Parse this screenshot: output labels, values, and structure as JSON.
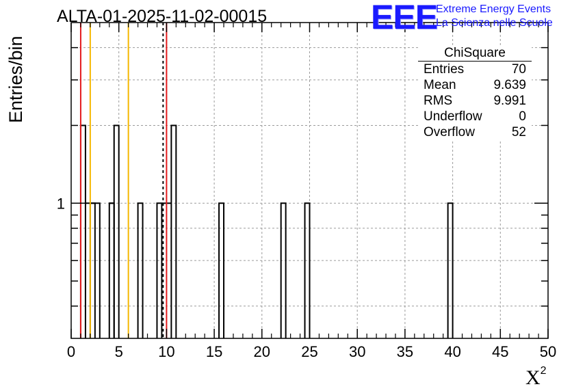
{
  "title": "ALTA-01-2025-11-02-00015",
  "logo": {
    "mark": "EEE",
    "line1": "Extreme Energy Events",
    "line2": "La Scienza nelle Scuole",
    "color": "#1a1aff"
  },
  "stats": {
    "name": "ChiSquare",
    "rows": [
      {
        "label": "Entries",
        "value": "70"
      },
      {
        "label": "Mean",
        "value": "9.639"
      },
      {
        "label": "RMS",
        "value": "9.991"
      },
      {
        "label": "Underflow",
        "value": "0"
      },
      {
        "label": "Overflow",
        "value": "52"
      }
    ]
  },
  "chart_data": {
    "type": "bar",
    "xlabel_base": "X",
    "xlabel_sup": "2",
    "ylabel": "Entries/bin",
    "xlim": [
      0,
      50
    ],
    "ylim": [
      0.3,
      5
    ],
    "log_y": true,
    "grid": true,
    "bin_width": 1,
    "bin_edges_note": "bins start at 0.0, width 1.0",
    "bins": [
      {
        "x": 1,
        "value": 2
      },
      {
        "x": 2,
        "value": 1
      },
      {
        "x": 4,
        "value": 1
      },
      {
        "x": 4.5,
        "value": 2
      },
      {
        "x": 7,
        "value": 1
      },
      {
        "x": 9,
        "value": 1
      },
      {
        "x": 10.5,
        "value": 2
      },
      {
        "x": 15.5,
        "value": 1
      },
      {
        "x": 22,
        "value": 1
      },
      {
        "x": 24.5,
        "value": 1
      },
      {
        "x": 39.5,
        "value": 1
      }
    ],
    "x_ticks": [
      0,
      5,
      10,
      15,
      20,
      25,
      30,
      35,
      40,
      45,
      50
    ],
    "y_tick_labels": [
      {
        "y": 1,
        "label": "1"
      }
    ],
    "reference_lines": [
      {
        "x": 1.0,
        "color": "#e31a1c",
        "style": "solid"
      },
      {
        "x": 2.0,
        "color": "#f5b700",
        "style": "solid"
      },
      {
        "x": 6.0,
        "color": "#f5b700",
        "style": "solid"
      },
      {
        "x": 9.639,
        "color": "#000000",
        "style": "dashed"
      },
      {
        "x": 10.0,
        "color": "#e31a1c",
        "style": "solid"
      }
    ]
  }
}
